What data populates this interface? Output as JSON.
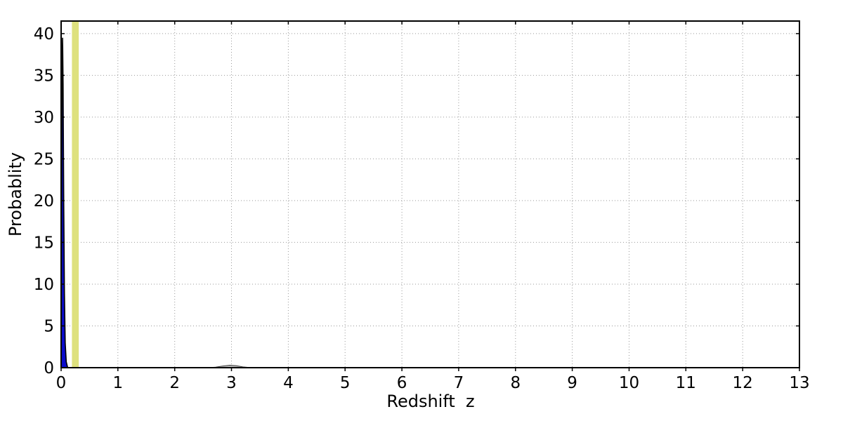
{
  "figure": {
    "background": "#ffffff",
    "spine_color": "#000000",
    "grid_color": "#999999"
  },
  "chart_data": {
    "type": "area",
    "title": "",
    "xlabel": "Redshift  z",
    "ylabel": "Probablity",
    "xlim": [
      0,
      13
    ],
    "ylim": [
      0,
      41.5
    ],
    "x_ticks": [
      0,
      1,
      2,
      3,
      4,
      5,
      6,
      7,
      8,
      9,
      10,
      11,
      12,
      13
    ],
    "y_ticks": [
      0,
      5,
      10,
      15,
      20,
      25,
      30,
      35,
      40
    ],
    "grid": "dotted",
    "legend": "none",
    "highlight_band": {
      "x0": 0.19,
      "x1": 0.31,
      "color": "#dee17e"
    },
    "series": [
      {
        "name": "pdf-main-peak",
        "line_color": "#000000",
        "fill_color": "#0c0ccc",
        "line_width": 1.6,
        "x": [
          0,
          0.004,
          0.01,
          0.018,
          0.026,
          0.035,
          0.046,
          0.058,
          0.072,
          0.09,
          0.115
        ],
        "y": [
          0.2,
          6,
          24,
          37,
          39.5,
          34,
          20,
          9,
          3,
          0.7,
          0
        ]
      },
      {
        "name": "pdf-secondary-bump",
        "line_color": "#3a3a3a",
        "fill_color": "#bbbbbb",
        "line_width": 1,
        "x": [
          2.6,
          2.72,
          2.85,
          2.97,
          3.08,
          3.2,
          3.35
        ],
        "y": [
          0,
          0.06,
          0.2,
          0.29,
          0.24,
          0.09,
          0
        ]
      }
    ]
  }
}
